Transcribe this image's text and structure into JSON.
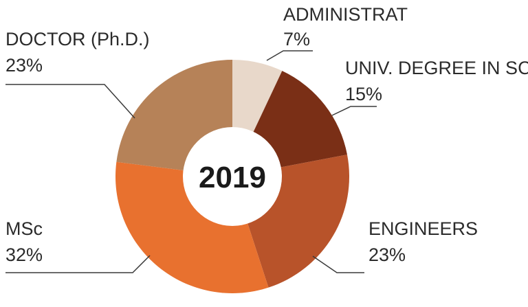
{
  "chart_data": {
    "type": "pie",
    "donut": true,
    "center_label": "2019",
    "slices": [
      {
        "label": "ADMINISTRAT",
        "value_label": "7%",
        "value": 7,
        "color": "#e8d8ca"
      },
      {
        "label": "UNIV. DEGREE IN SC",
        "value_label": "15%",
        "value": 15,
        "color": "#7a2f16"
      },
      {
        "label": "ENGINEERS",
        "value_label": "23%",
        "value": 23,
        "color": "#b8532a"
      },
      {
        "label": "MSc",
        "value_label": "32%",
        "value": 32,
        "color": "#e8712f"
      },
      {
        "label": "DOCTOR (Ph.D.)",
        "value_label": "23%",
        "value": 23,
        "color": "#b68258"
      }
    ]
  }
}
